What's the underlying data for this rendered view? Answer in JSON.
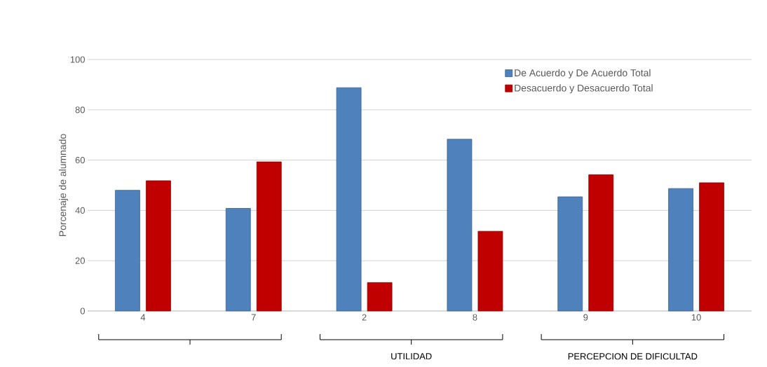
{
  "chart_data": {
    "type": "bar",
    "ylabel": "Porcenaje de alumnado",
    "categories": [
      "4",
      "7",
      "2",
      "8",
      "9",
      "10"
    ],
    "series": [
      {
        "name": "De Acuerdo y De Acuerdo Total",
        "color": "#4f81bd",
        "values": [
          48.0,
          40.8,
          88.8,
          68.3,
          45.4,
          48.7
        ]
      },
      {
        "name": "Desacuerdo y Desacuerdo Total",
        "color": "#c00000",
        "values": [
          51.8,
          59.3,
          11.3,
          31.7,
          54.2,
          51.0
        ]
      }
    ],
    "ylim": [
      0,
      100
    ],
    "yticks": [
      0,
      20,
      40,
      60,
      80,
      100
    ],
    "grid": "y",
    "legend": "top right",
    "annotations": [
      "UTILIDAD",
      "PERCEPCION DE DIFICULTAD"
    ]
  }
}
